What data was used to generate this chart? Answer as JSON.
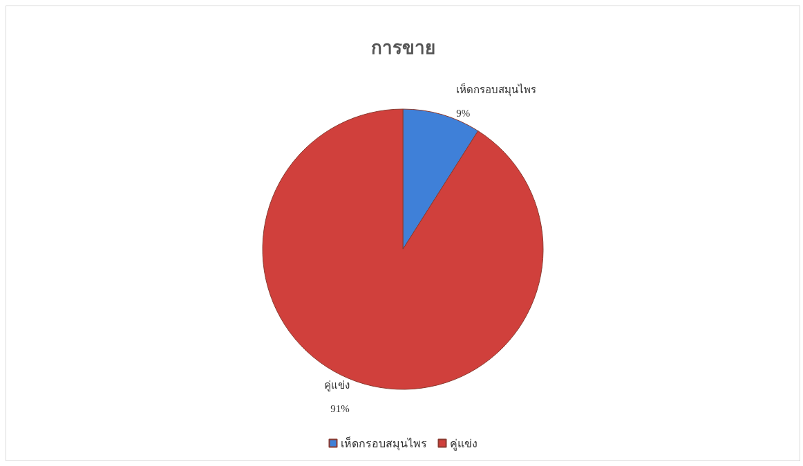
{
  "chart_data": {
    "type": "pie",
    "title": "การขาย",
    "categories": [
      "เห็ดกรอบสมุนไพร",
      "คู่แข่ง"
    ],
    "values": [
      9,
      91
    ],
    "colors": [
      "#3f80d8",
      "#d0403c"
    ],
    "value_labels": [
      "9%",
      "91%"
    ],
    "legend": "bottom"
  }
}
